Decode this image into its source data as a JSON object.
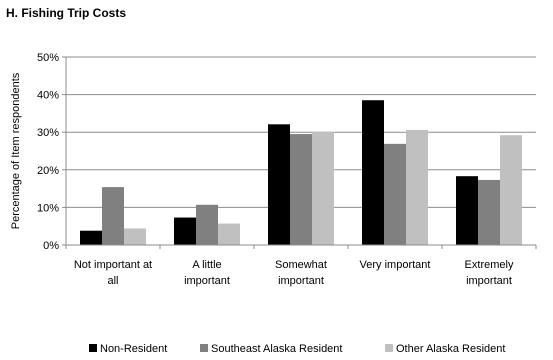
{
  "chart_data": {
    "type": "bar",
    "title": "H. Fishing Trip Costs",
    "ylabel": "Percentage of Item respondents",
    "xlabel": "",
    "ylim": [
      0,
      50
    ],
    "yticks": [
      "0%",
      "10%",
      "20%",
      "30%",
      "40%",
      "50%"
    ],
    "grid": true,
    "legend_position": "bottom",
    "categories": [
      [
        "Not important at",
        "all"
      ],
      [
        "A little",
        "important"
      ],
      [
        "Somewhat",
        "important"
      ],
      [
        "Very important"
      ],
      [
        "Extremely",
        "important"
      ]
    ],
    "series": [
      {
        "name": "Non-Resident",
        "color": "#000000",
        "values": [
          3.8,
          7.3,
          32.1,
          38.5,
          18.3
        ]
      },
      {
        "name": "Southeast Alaska Resident",
        "color": "#808080",
        "values": [
          15.4,
          10.7,
          29.5,
          26.9,
          17.3
        ]
      },
      {
        "name": "Other Alaska Resident",
        "color": "#c0c0c0",
        "values": [
          4.4,
          5.7,
          30.1,
          30.6,
          29.2
        ]
      }
    ]
  }
}
